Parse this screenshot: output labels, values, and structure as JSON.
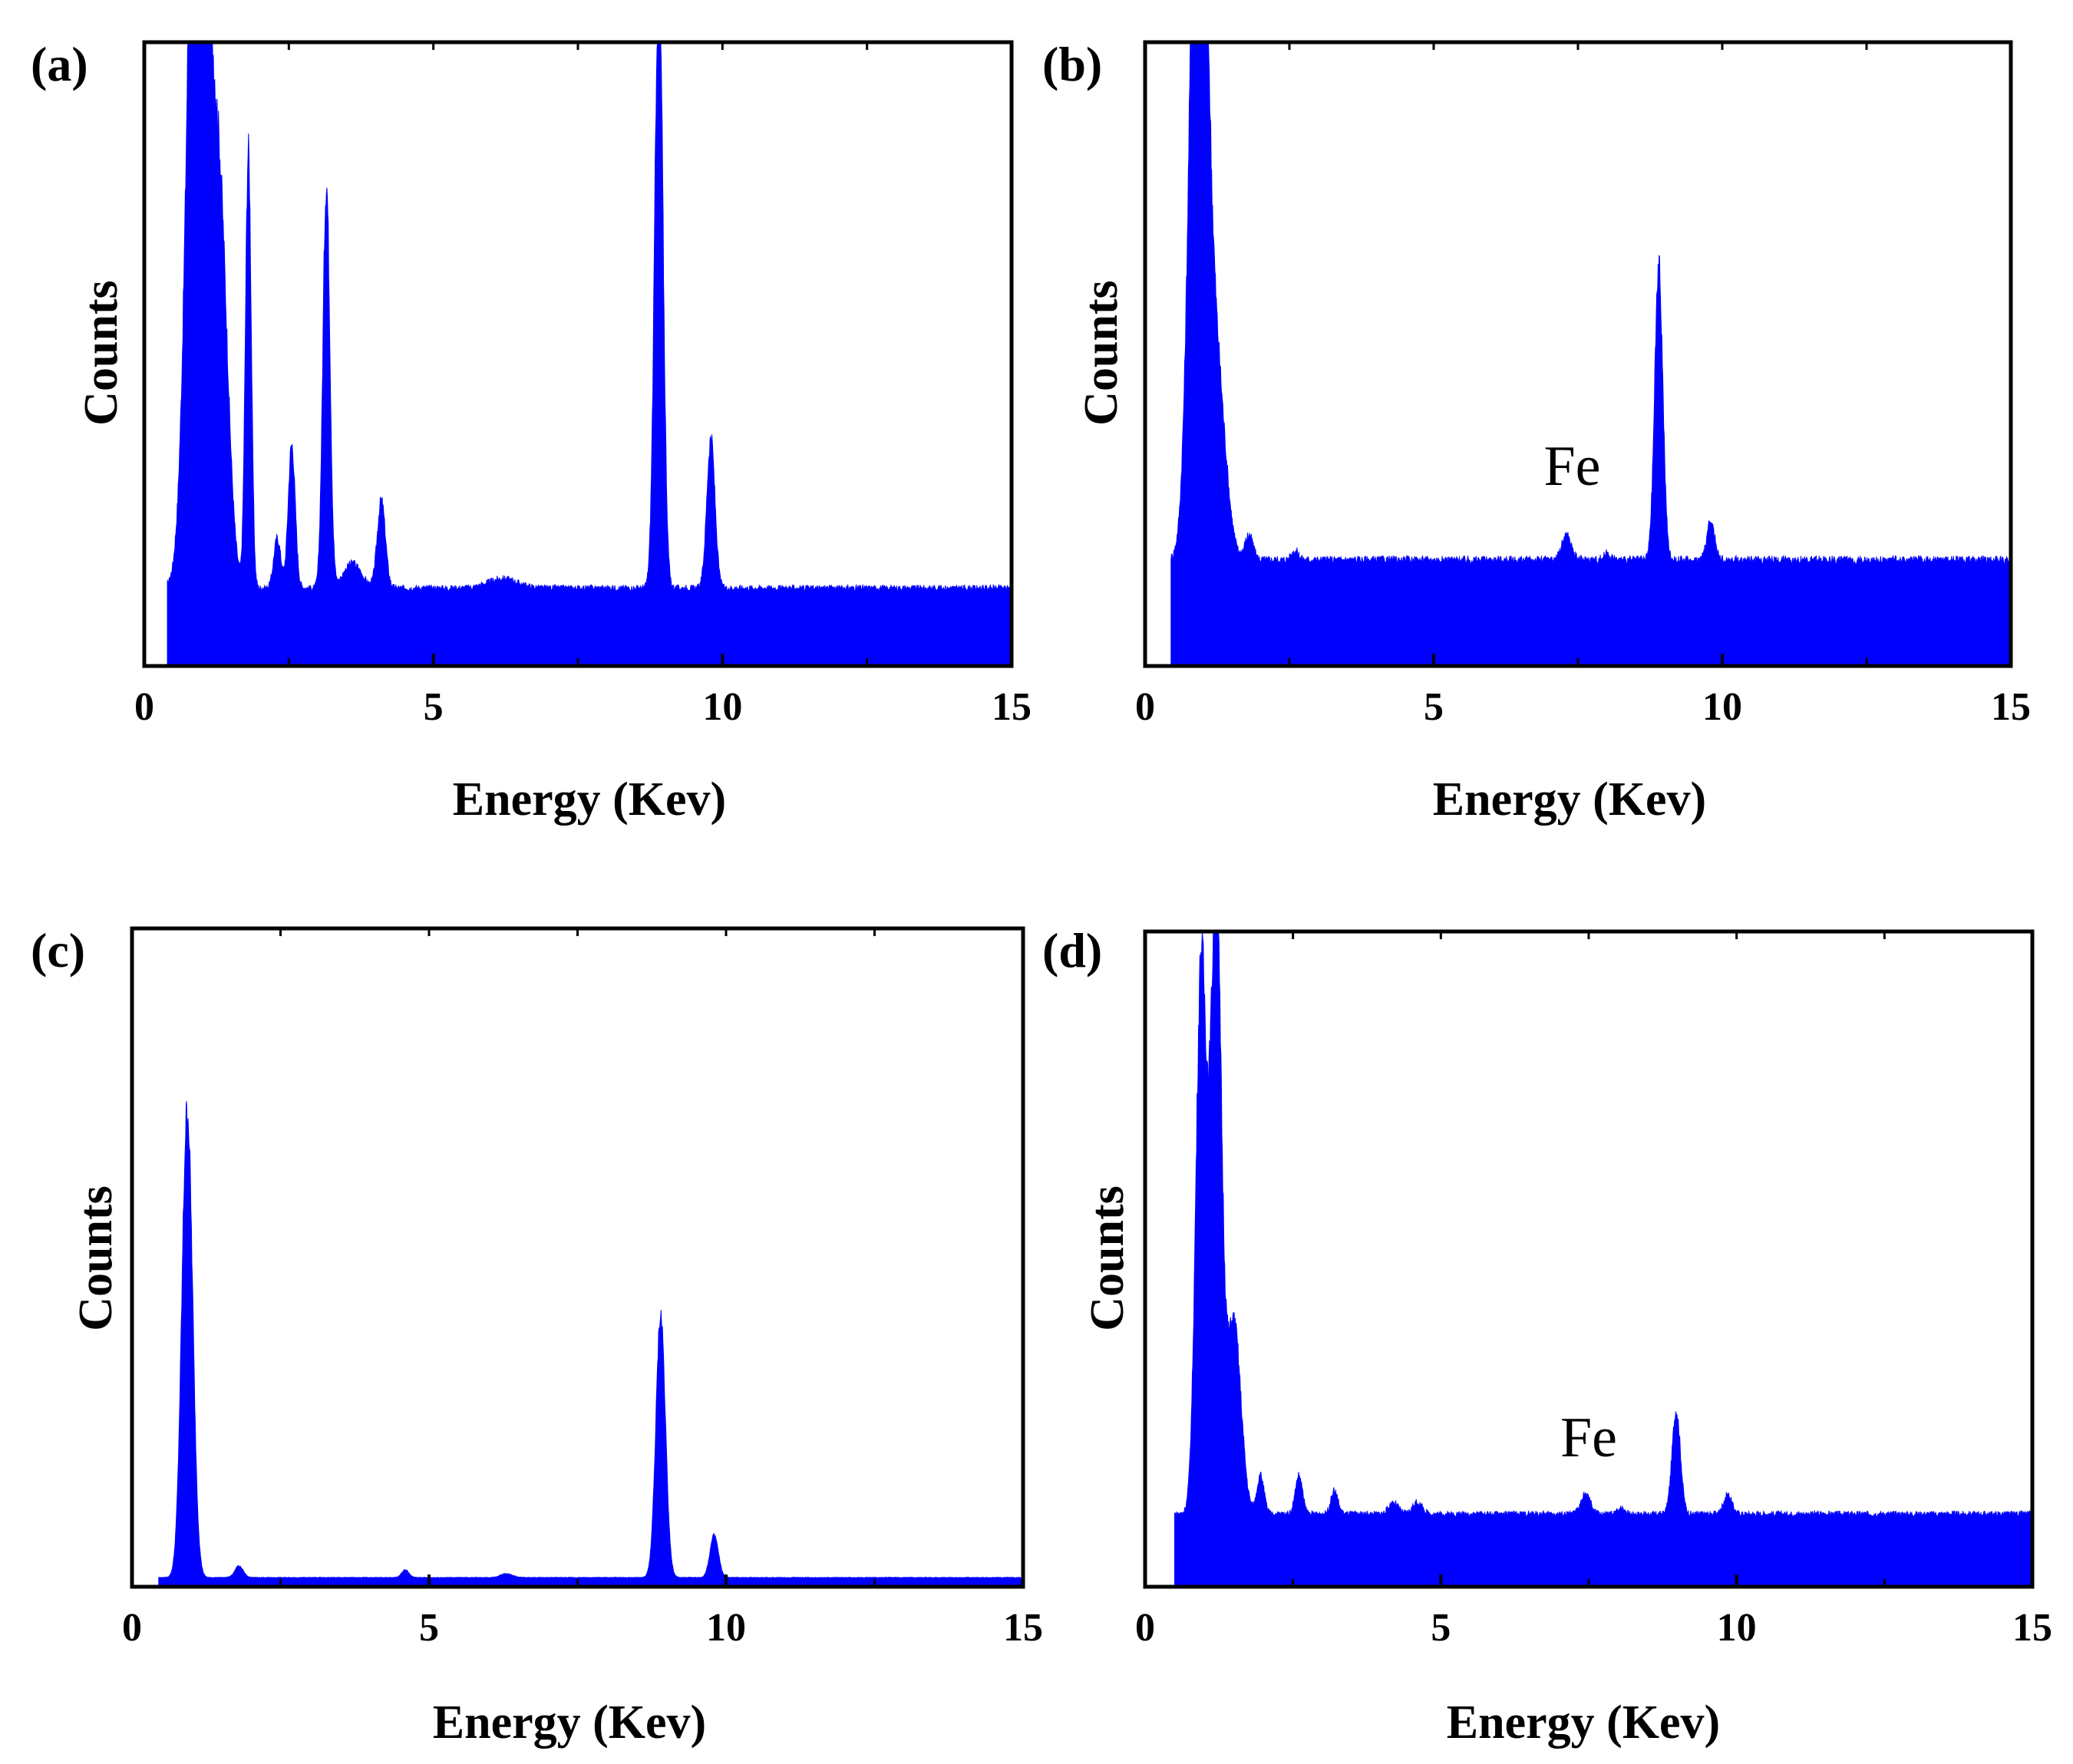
{
  "figure": {
    "series_color": "#0000ff"
  },
  "chart_data": [
    {
      "panel": "(a)",
      "type": "area",
      "title": "",
      "xlabel": "Energy (Kev)",
      "ylabel": "Counts",
      "xlim": [
        0,
        15
      ],
      "ylim": [
        0,
        100
      ],
      "xticks": [
        "0",
        "5",
        "10",
        "15"
      ],
      "annotations": [],
      "spectrum": {
        "start": 0.4,
        "end": 15,
        "baseline": 12.5,
        "tail": 12.5,
        "peaks": [
          {
            "x": 0.93,
            "height": 160,
            "width": 0.16
          },
          {
            "x": 1.3,
            "height": 60,
            "width": 0.14
          },
          {
            "x": 1.8,
            "height": 70,
            "width": 0.05
          },
          {
            "x": 2.3,
            "height": 8,
            "width": 0.06
          },
          {
            "x": 2.55,
            "height": 23,
            "width": 0.06
          },
          {
            "x": 3.15,
            "height": 65,
            "width": 0.06
          },
          {
            "x": 3.6,
            "height": 4,
            "width": 0.15
          },
          {
            "x": 4.1,
            "height": 14,
            "width": 0.07
          },
          {
            "x": 6.2,
            "height": 1.5,
            "width": 0.25
          },
          {
            "x": 8.9,
            "height": 100,
            "width": 0.07
          },
          {
            "x": 9.8,
            "height": 24,
            "width": 0.07
          }
        ]
      }
    },
    {
      "panel": "(b)",
      "type": "area",
      "title": "",
      "xlabel": "Energy (Kev)",
      "ylabel": "Counts",
      "xlim": [
        0,
        15
      ],
      "ylim": [
        0,
        100
      ],
      "xticks": [
        "0",
        "5",
        "10",
        "15"
      ],
      "annotations": [
        {
          "text": "Fe",
          "x": 7.4,
          "y": 29
        }
      ],
      "spectrum": {
        "start": 0.45,
        "end": 15,
        "baseline": 17,
        "tail": 17,
        "peaks": [
          {
            "x": 0.93,
            "height": 140,
            "width": 0.14
          },
          {
            "x": 1.25,
            "height": 28,
            "width": 0.15
          },
          {
            "x": 1.8,
            "height": 4,
            "width": 0.07
          },
          {
            "x": 2.6,
            "height": 1.5,
            "width": 0.06
          },
          {
            "x": 7.3,
            "height": 4,
            "width": 0.08
          },
          {
            "x": 8.0,
            "height": 1,
            "width": 0.06
          },
          {
            "x": 8.9,
            "height": 47,
            "width": 0.07
          },
          {
            "x": 9.8,
            "height": 6,
            "width": 0.07
          }
        ]
      }
    },
    {
      "panel": "(c)",
      "type": "area",
      "title": "",
      "xlabel": "Energy (Kev)",
      "ylabel": "Counts",
      "xlim": [
        0,
        15
      ],
      "ylim": [
        0,
        100
      ],
      "xticks": [
        "0",
        "5",
        "10",
        "15"
      ],
      "annotations": [],
      "spectrum": {
        "start": 0.45,
        "end": 15,
        "baseline": 1.2,
        "tail": 1.2,
        "peaks": [
          {
            "x": 0.93,
            "height": 61,
            "width": 0.09
          },
          {
            "x": 1.8,
            "height": 1.5,
            "width": 0.07
          },
          {
            "x": 4.6,
            "height": 1,
            "width": 0.06
          },
          {
            "x": 6.3,
            "height": 0.5,
            "width": 0.1
          },
          {
            "x": 8.9,
            "height": 34,
            "width": 0.08
          },
          {
            "x": 9.8,
            "height": 5.5,
            "width": 0.07
          }
        ]
      }
    },
    {
      "panel": "(d)",
      "type": "area",
      "title": "",
      "xlabel": "Energy (Kev)",
      "ylabel": "Counts",
      "xlim": [
        0,
        15
      ],
      "ylim": [
        0,
        100
      ],
      "xticks": [
        "0",
        "5",
        "10",
        "15"
      ],
      "annotations": [
        {
          "text": "Fe",
          "x": 7.5,
          "y": 17
        }
      ],
      "spectrum": {
        "start": 0.5,
        "end": 15,
        "baseline": 9.5,
        "tail": 9.5,
        "peaks": [
          {
            "x": 0.95,
            "height": 72,
            "width": 0.09
          },
          {
            "x": 1.2,
            "height": 80,
            "width": 0.09
          },
          {
            "x": 1.5,
            "height": 25,
            "width": 0.12
          },
          {
            "x": 1.95,
            "height": 5,
            "width": 0.06
          },
          {
            "x": 2.6,
            "height": 5,
            "width": 0.06
          },
          {
            "x": 3.2,
            "height": 3,
            "width": 0.06
          },
          {
            "x": 4.2,
            "height": 1.5,
            "width": 0.08
          },
          {
            "x": 4.6,
            "height": 1.5,
            "width": 0.08
          },
          {
            "x": 7.45,
            "height": 2.5,
            "width": 0.08
          },
          {
            "x": 8.05,
            "height": 0.8,
            "width": 0.06
          },
          {
            "x": 8.98,
            "height": 13.5,
            "width": 0.07
          },
          {
            "x": 9.85,
            "height": 2.5,
            "width": 0.07
          }
        ]
      }
    }
  ]
}
